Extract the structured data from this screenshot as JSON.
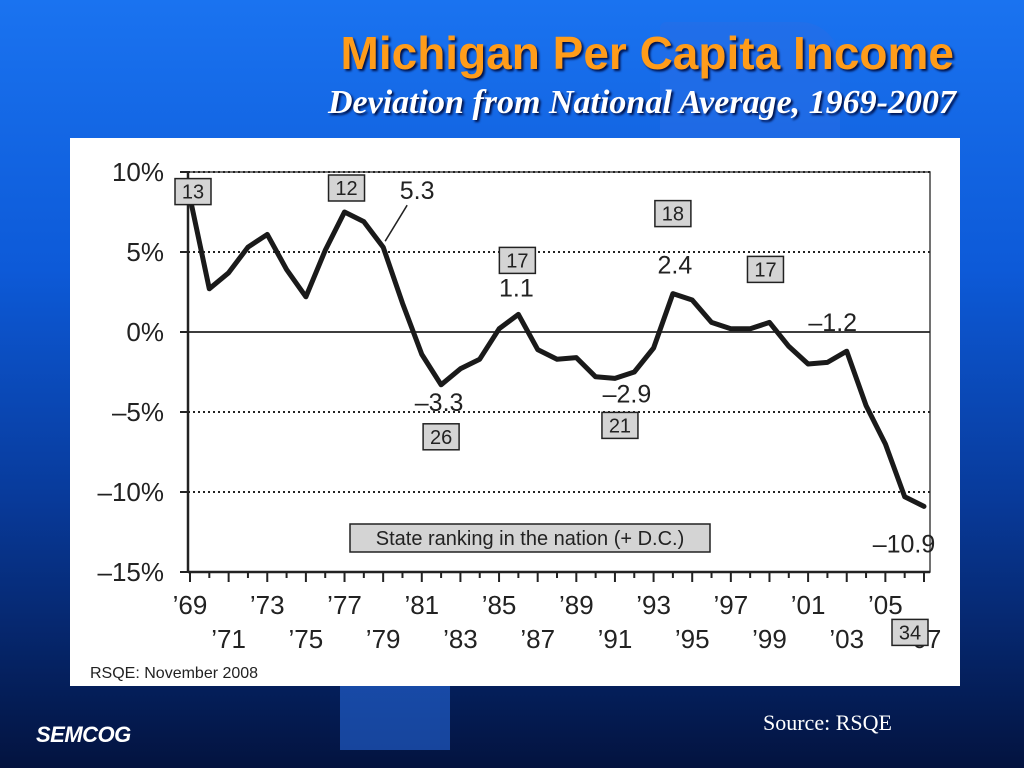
{
  "slide": {
    "title": "Michigan Per Capita Income",
    "subtitle": "Deviation from National Average, 1969-2007",
    "source": "Source: RSQE",
    "logo": "SEMCOG",
    "colors": {
      "title": "#ff9c1a",
      "subtitle": "#ffffff",
      "background": "#0d5ad8"
    }
  },
  "chart_data": {
    "type": "line",
    "title": "",
    "xlabel": "",
    "ylabel": "",
    "ylim": [
      -15,
      10
    ],
    "xlim": [
      1969,
      2007
    ],
    "y_ticks": [
      {
        "value": 10,
        "label": "10%"
      },
      {
        "value": 5,
        "label": "5%"
      },
      {
        "value": 0,
        "label": "0%"
      },
      {
        "value": -5,
        "label": "–5%"
      },
      {
        "value": -10,
        "label": "–10%"
      },
      {
        "value": -15,
        "label": "–15%"
      }
    ],
    "x_ticks": [
      {
        "year": 1969,
        "label": "’69"
      },
      {
        "year": 1971,
        "label": "’71"
      },
      {
        "year": 1973,
        "label": "’73"
      },
      {
        "year": 1975,
        "label": "’75"
      },
      {
        "year": 1977,
        "label": "’77"
      },
      {
        "year": 1979,
        "label": "’79"
      },
      {
        "year": 1981,
        "label": "’81"
      },
      {
        "year": 1983,
        "label": "’83"
      },
      {
        "year": 1985,
        "label": "’85"
      },
      {
        "year": 1987,
        "label": "’87"
      },
      {
        "year": 1989,
        "label": "’89"
      },
      {
        "year": 1991,
        "label": "’91"
      },
      {
        "year": 1993,
        "label": "’93"
      },
      {
        "year": 1995,
        "label": "’95"
      },
      {
        "year": 1997,
        "label": "’97"
      },
      {
        "year": 1999,
        "label": "’99"
      },
      {
        "year": 2001,
        "label": "’01"
      },
      {
        "year": 2003,
        "label": "’03"
      },
      {
        "year": 2005,
        "label": "’05"
      },
      {
        "year": 2007,
        "label": "’07"
      }
    ],
    "dotted_gridlines": [
      10,
      5,
      -5,
      -10
    ],
    "solid_gridlines": [
      0
    ],
    "series": [
      {
        "x": [
          1969,
          1970,
          1971,
          1972,
          1973,
          1974,
          1975,
          1976,
          1977,
          1978,
          1979,
          1980,
          1981,
          1982,
          1983,
          1984,
          1985,
          1986,
          1987,
          1988,
          1989,
          1990,
          1991,
          1992,
          1993,
          1994,
          1995,
          1996,
          1997,
          1998,
          1999,
          2000,
          2001,
          2002,
          2003,
          2004,
          2005,
          2006,
          2007
        ],
        "y": [
          8.4,
          2.7,
          3.7,
          5.3,
          6.1,
          3.9,
          2.2,
          5.1,
          7.5,
          6.9,
          5.3,
          1.8,
          -1.4,
          -3.3,
          -2.3,
          -1.7,
          0.2,
          1.1,
          -1.1,
          -1.7,
          -1.6,
          -2.8,
          -2.9,
          -2.5,
          -1.0,
          2.4,
          2.0,
          0.6,
          0.2,
          0.2,
          0.6,
          -0.9,
          -2.0,
          -1.9,
          -1.2,
          -4.6,
          -7.0,
          -10.3,
          -10.9
        ]
      }
    ],
    "value_labels": [
      {
        "year": 1979,
        "value": 5.3,
        "text": "5.3"
      },
      {
        "year": 1982,
        "value": -3.3,
        "text": "–3.3"
      },
      {
        "year": 1986,
        "value": 1.1,
        "text": "1.1"
      },
      {
        "year": 1991,
        "value": -2.9,
        "text": "–2.9"
      },
      {
        "year": 1994,
        "value": 2.4,
        "text": "2.4"
      },
      {
        "year": 2003,
        "value": -1.2,
        "text": "–1.2"
      },
      {
        "year": 2007,
        "value": -10.9,
        "text": "–10.9"
      }
    ],
    "rank_labels": [
      {
        "year": 1969,
        "value": 8.4,
        "rank": "13"
      },
      {
        "year": 1977,
        "value": 7.5,
        "rank": "12"
      },
      {
        "year": 1982,
        "value": -3.3,
        "rank": "26"
      },
      {
        "year": 1986,
        "value": 1.1,
        "rank": "17"
      },
      {
        "year": 1991,
        "value": -2.9,
        "rank": "21"
      },
      {
        "year": 1994,
        "value": 2.4,
        "rank": "18"
      },
      {
        "year": 1999,
        "value": 0.6,
        "rank": "17"
      },
      {
        "year": 2007,
        "value": -10.9,
        "rank": "34"
      }
    ],
    "legend_note": "State ranking in the nation (+ D.C.)",
    "credit": "RSQE: November 2008"
  }
}
